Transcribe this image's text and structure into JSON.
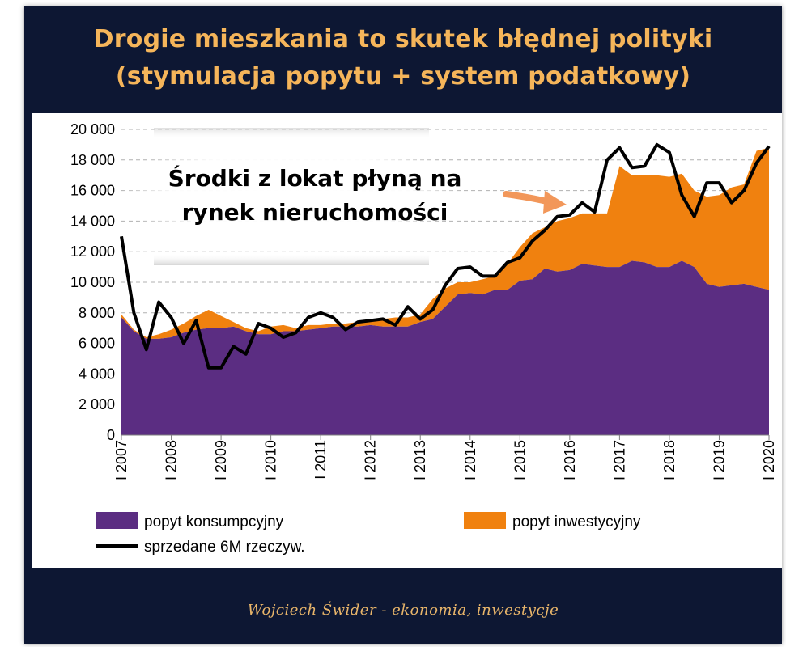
{
  "title_lines": [
    "Drogie mieszkania to skutek błędnej polityki",
    "(stymulacja popytu + system podatkowy)"
  ],
  "annotation_lines": [
    "Środki z lokat płyną na",
    "rynek nieruchomości"
  ],
  "footer": "Wojciech Świder - ekonomia, inwestycje",
  "colors": {
    "background": "#0d1733",
    "title": "#f5b55a",
    "consumption": "#5b2d82",
    "investment": "#f0810f",
    "sales_line": "#000000",
    "arrow": "#f2975a",
    "footer": "#e8b56a"
  },
  "chart_data": {
    "type": "area",
    "stacked": true,
    "ylim": [
      0,
      20000
    ],
    "yticks": [
      "0",
      "2 000",
      "4 000",
      "6 000",
      "8 000",
      "10 000",
      "12 000",
      "14 000",
      "16 000",
      "18 000",
      "20 000"
    ],
    "xticks": [
      "I 2007",
      "I 2008",
      "I 2009",
      "I 2010",
      "I 2011",
      "I 2012",
      "I 2013",
      "I 2014",
      "I 2015",
      "I 2016",
      "I 2017",
      "I 2018",
      "I 2019",
      "I 2020"
    ],
    "grid": true,
    "legend_placement": "bottom",
    "x": [
      "2007Q1",
      "2007Q2",
      "2007Q3",
      "2007Q4",
      "2008Q1",
      "2008Q2",
      "2008Q3",
      "2008Q4",
      "2009Q1",
      "2009Q2",
      "2009Q3",
      "2009Q4",
      "2010Q1",
      "2010Q2",
      "2010Q3",
      "2010Q4",
      "2011Q1",
      "2011Q2",
      "2011Q3",
      "2011Q4",
      "2012Q1",
      "2012Q2",
      "2012Q3",
      "2012Q4",
      "2013Q1",
      "2013Q2",
      "2013Q3",
      "2013Q4",
      "2014Q1",
      "2014Q2",
      "2014Q3",
      "2014Q4",
      "2015Q1",
      "2015Q2",
      "2015Q3",
      "2015Q4",
      "2016Q1",
      "2016Q2",
      "2016Q3",
      "2016Q4",
      "2017Q1",
      "2017Q2",
      "2017Q3",
      "2017Q4",
      "2018Q1",
      "2018Q2",
      "2018Q3",
      "2018Q4",
      "2019Q1",
      "2019Q2",
      "2019Q3",
      "2019Q4",
      "2020Q1"
    ],
    "series": [
      {
        "name": "popyt konsumpcyjny",
        "kind": "area",
        "values": [
          7700,
          6800,
          6300,
          6300,
          6400,
          6700,
          6900,
          7000,
          7000,
          7100,
          6800,
          6600,
          6600,
          6800,
          6800,
          6900,
          7000,
          7100,
          7100,
          7100,
          7200,
          7100,
          7100,
          7100,
          7400,
          7600,
          8400,
          9200,
          9300,
          9200,
          9500,
          9500,
          10100,
          10200,
          10900,
          10700,
          10800,
          11200,
          11100,
          11000,
          11000,
          11400,
          11300,
          11000,
          11000,
          11400,
          11000,
          9900,
          9700,
          9800,
          9900,
          9700,
          9500
        ]
      },
      {
        "name": "popyt inwestycyjny",
        "kind": "area",
        "values": [
          200,
          100,
          100,
          300,
          500,
          600,
          900,
          1200,
          800,
          300,
          200,
          200,
          500,
          400,
          200,
          300,
          200,
          200,
          200,
          300,
          400,
          500,
          600,
          600,
          500,
          1300,
          1200,
          800,
          700,
          1000,
          900,
          1700,
          2200,
          3000,
          2700,
          3300,
          3400,
          3300,
          3400,
          3500,
          6600,
          5600,
          5700,
          6000,
          5900,
          5700,
          5000,
          5700,
          6000,
          6400,
          6500,
          8900,
          9300
        ]
      },
      {
        "name": "sprzedane 6M rzeczyw.",
        "kind": "line",
        "values": [
          13000,
          8000,
          5600,
          8700,
          7700,
          6000,
          7500,
          4400,
          4400,
          5800,
          5300,
          7300,
          7000,
          6400,
          6700,
          7700,
          8000,
          7700,
          6900,
          7400,
          7500,
          7600,
          7200,
          8400,
          7600,
          8200,
          9800,
          10900,
          11000,
          10400,
          10400,
          11300,
          11600,
          12700,
          13400,
          14300,
          14400,
          15200,
          14600,
          18000,
          18800,
          17500,
          17600,
          19000,
          18500,
          15700,
          14300,
          16500,
          16500,
          15200,
          16000,
          17800,
          18900
        ]
      }
    ]
  }
}
